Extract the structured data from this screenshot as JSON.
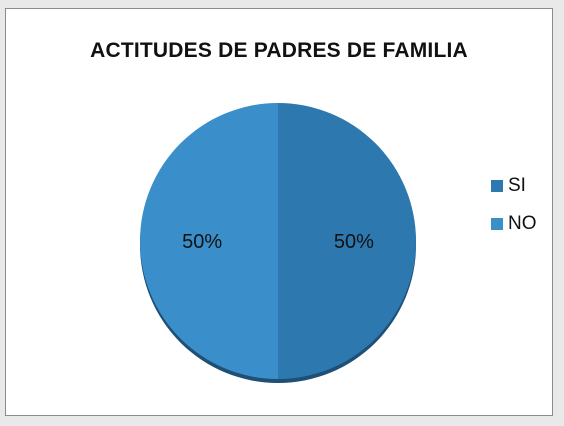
{
  "chart_data": {
    "type": "pie",
    "title": "ACTITUDES DE PADRES DE FAMILIA",
    "categories": [
      "SI",
      "NO"
    ],
    "values": [
      50,
      50
    ],
    "data_labels": [
      "50%",
      "50%"
    ],
    "colors": [
      "#2e78b0",
      "#3a8ec9"
    ],
    "legend_position": "right"
  }
}
